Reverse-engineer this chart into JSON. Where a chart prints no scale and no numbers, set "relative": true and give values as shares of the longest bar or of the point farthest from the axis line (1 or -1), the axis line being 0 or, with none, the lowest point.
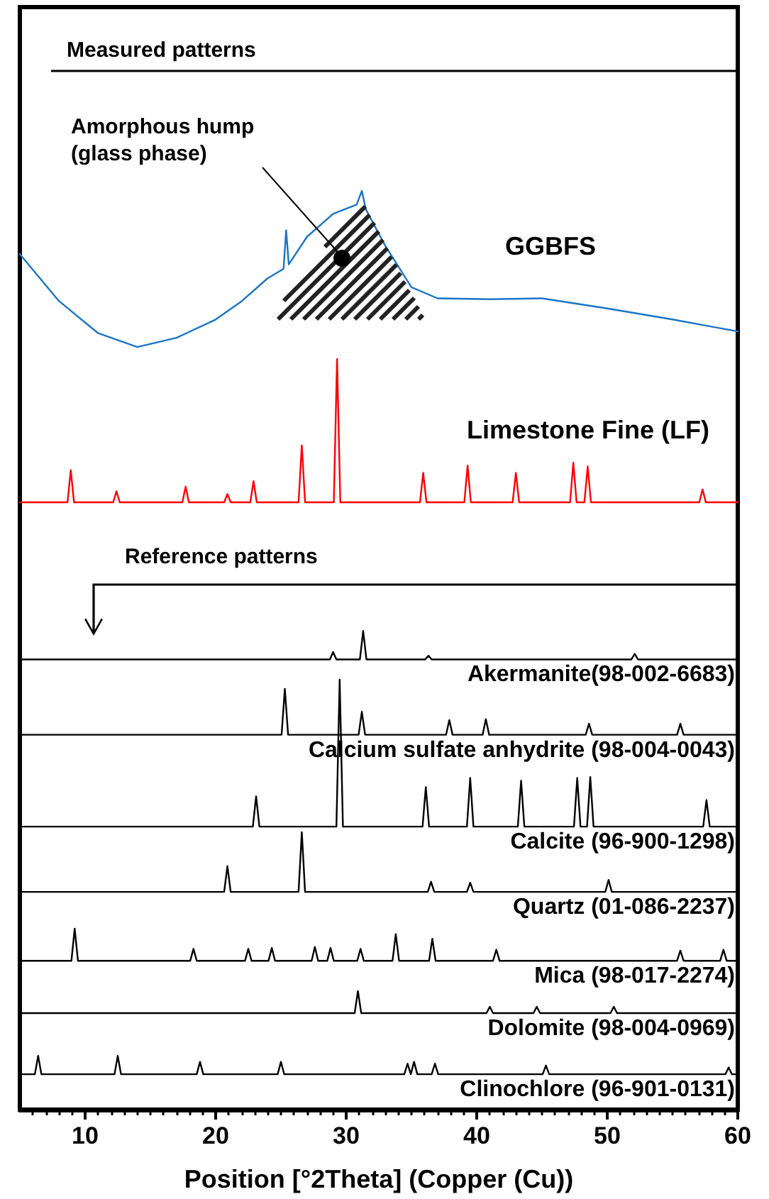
{
  "chart_data": {
    "type": "line",
    "relative": true,
    "xlabel": "Position [°2Theta] (Copper (Cu))",
    "xlim": [
      5,
      60
    ],
    "xticks": [
      10,
      20,
      30,
      40,
      50,
      60
    ],
    "tick_labels": "x",
    "grid": false,
    "legend": false,
    "marker": "none",
    "line_style": "solid",
    "annotations": [
      "Measured patterns",
      "Amorphous hump (glass phase)",
      "Reference patterns"
    ],
    "series": [
      {
        "name": "GGBFS",
        "color": "#1b75c6",
        "x": [
          5,
          8,
          11,
          14,
          17,
          20,
          22,
          24,
          25.2,
          25.4,
          25.6,
          27,
          29,
          30.8,
          31.2,
          31.5,
          33,
          35,
          37,
          41,
          45,
          50,
          55,
          60
        ],
        "values": [
          0.931,
          0.88,
          0.845,
          0.83,
          0.84,
          0.86,
          0.88,
          0.905,
          0.915,
          0.957,
          0.92,
          0.95,
          0.975,
          0.985,
          1.0,
          0.98,
          0.94,
          0.895,
          0.883,
          0.882,
          0.883,
          0.872,
          0.86,
          0.847
        ]
      },
      {
        "name": "Limestone Fine (LF)",
        "color": "#ff0000",
        "x": [
          5,
          8.65,
          8.9,
          9.15,
          12.15,
          12.4,
          12.65,
          17.45,
          17.7,
          17.95,
          20.65,
          20.9,
          21.15,
          22.65,
          22.9,
          23.15,
          26.35,
          26.6,
          26.85,
          29.05,
          29.3,
          29.55,
          35.65,
          35.9,
          36.15,
          39.05,
          39.3,
          39.55,
          42.75,
          43,
          43.25,
          47.15,
          47.4,
          47.65,
          48.25,
          48.5,
          48.75,
          57.05,
          57.3,
          57.55,
          60
        ],
        "values": [
          0.661,
          0.661,
          0.696,
          0.661,
          0.661,
          0.673,
          0.661,
          0.661,
          0.678,
          0.661,
          0.661,
          0.67,
          0.661,
          0.661,
          0.684,
          0.661,
          0.661,
          0.723,
          0.661,
          0.661,
          0.817,
          0.661,
          0.661,
          0.693,
          0.661,
          0.661,
          0.701,
          0.661,
          0.661,
          0.693,
          0.661,
          0.661,
          0.704,
          0.661,
          0.661,
          0.7,
          0.661,
          0.661,
          0.675,
          0.661,
          0.661
        ]
      },
      {
        "name": "Akermanite(98-002-6683)",
        "color": "#000000",
        "x": [
          5,
          28.75,
          29,
          29.25,
          31.05,
          31.3,
          31.55,
          36.05,
          36.3,
          36.55,
          51.85,
          52.1,
          52.35,
          60
        ],
        "values": [
          0.49,
          0.49,
          0.498,
          0.49,
          0.49,
          0.521,
          0.49,
          0.49,
          0.494,
          0.49,
          0.49,
          0.496,
          0.49,
          0.49
        ]
      },
      {
        "name": "Calcium sulfate anhydrite (98-004-0043)",
        "color": "#000000",
        "x": [
          5,
          25.05,
          25.3,
          25.55,
          30.95,
          31.2,
          31.45,
          37.65,
          37.9,
          38.15,
          40.45,
          40.7,
          40.95,
          48.35,
          48.6,
          48.85,
          55.35,
          55.6,
          55.85,
          60
        ],
        "values": [
          0.408,
          0.408,
          0.458,
          0.408,
          0.408,
          0.433,
          0.408,
          0.408,
          0.424,
          0.408,
          0.408,
          0.425,
          0.408,
          0.408,
          0.42,
          0.408,
          0.408,
          0.42,
          0.408,
          0.408
        ]
      },
      {
        "name": "Calcite (96-900-1298)",
        "color": "#000000",
        "x": [
          5,
          22.85,
          23.1,
          23.35,
          29.25,
          29.5,
          29.75,
          35.85,
          36.1,
          36.35,
          39.25,
          39.5,
          39.75,
          43.15,
          43.4,
          43.65,
          47.45,
          47.7,
          47.95,
          48.45,
          48.7,
          48.95,
          57.35,
          57.6,
          57.85,
          60
        ],
        "values": [
          0.308,
          0.308,
          0.341,
          0.308,
          0.308,
          0.468,
          0.308,
          0.308,
          0.351,
          0.308,
          0.308,
          0.361,
          0.308,
          0.308,
          0.358,
          0.308,
          0.308,
          0.361,
          0.308,
          0.308,
          0.362,
          0.308,
          0.308,
          0.337,
          0.308,
          0.308
        ]
      },
      {
        "name": "Quartz (01-086-2237)",
        "color": "#000000",
        "x": [
          5,
          20.65,
          20.9,
          21.15,
          26.35,
          26.6,
          26.85,
          36.25,
          36.5,
          36.75,
          39.25,
          39.5,
          39.75,
          49.85,
          50.1,
          50.35,
          60
        ],
        "values": [
          0.237,
          0.237,
          0.265,
          0.237,
          0.237,
          0.302,
          0.237,
          0.237,
          0.248,
          0.237,
          0.237,
          0.247,
          0.237,
          0.237,
          0.25,
          0.237,
          0.237
        ]
      },
      {
        "name": "Mica (98-017-2274)",
        "color": "#000000",
        "x": [
          5,
          8.95,
          9.2,
          9.45,
          18.05,
          18.3,
          18.55,
          22.25,
          22.5,
          22.75,
          24.05,
          24.3,
          24.55,
          27.35,
          27.6,
          27.85,
          28.55,
          28.8,
          29.05,
          30.85,
          31.1,
          31.35,
          33.55,
          33.8,
          34.05,
          36.35,
          36.6,
          36.85,
          41.25,
          41.5,
          41.75,
          55.35,
          55.6,
          55.85,
          58.65,
          58.9,
          59.15,
          60
        ],
        "values": [
          0.162,
          0.162,
          0.197,
          0.162,
          0.162,
          0.175,
          0.162,
          0.162,
          0.175,
          0.162,
          0.162,
          0.176,
          0.162,
          0.162,
          0.177,
          0.162,
          0.162,
          0.176,
          0.162,
          0.162,
          0.175,
          0.162,
          0.162,
          0.191,
          0.162,
          0.162,
          0.186,
          0.162,
          0.162,
          0.174,
          0.162,
          0.162,
          0.173,
          0.162,
          0.162,
          0.174,
          0.162,
          0.162
        ]
      },
      {
        "name": "Dolomite (98-004-0969)",
        "color": "#000000",
        "x": [
          5,
          30.65,
          30.9,
          31.15,
          40.75,
          41,
          41.25,
          44.35,
          44.6,
          44.85,
          50.25,
          50.5,
          50.75,
          60
        ],
        "values": [
          0.105,
          0.105,
          0.129,
          0.105,
          0.105,
          0.112,
          0.105,
          0.105,
          0.112,
          0.105,
          0.105,
          0.112,
          0.105,
          0.105
        ]
      },
      {
        "name": "Clinochlore (96-901-0131)",
        "color": "#000000",
        "x": [
          5,
          6.15,
          6.4,
          6.65,
          12.25,
          12.5,
          12.75,
          18.55,
          18.8,
          19.05,
          24.75,
          25,
          25.25,
          34.45,
          34.7,
          34.95,
          35.2,
          35.45,
          36.55,
          36.8,
          37.05,
          45.05,
          45.3,
          45.55,
          59.05,
          59.3,
          59.55,
          60
        ],
        "values": [
          0.0385,
          0.0385,
          0.0585,
          0.0385,
          0.0385,
          0.0585,
          0.0385,
          0.0385,
          0.052,
          0.0385,
          0.0385,
          0.052,
          0.0385,
          0.0385,
          0.05,
          0.0385,
          0.052,
          0.0385,
          0.0385,
          0.05,
          0.0385,
          0.0385,
          0.048,
          0.0385,
          0.0385,
          0.046,
          0.0385,
          0.0385
        ]
      }
    ]
  }
}
